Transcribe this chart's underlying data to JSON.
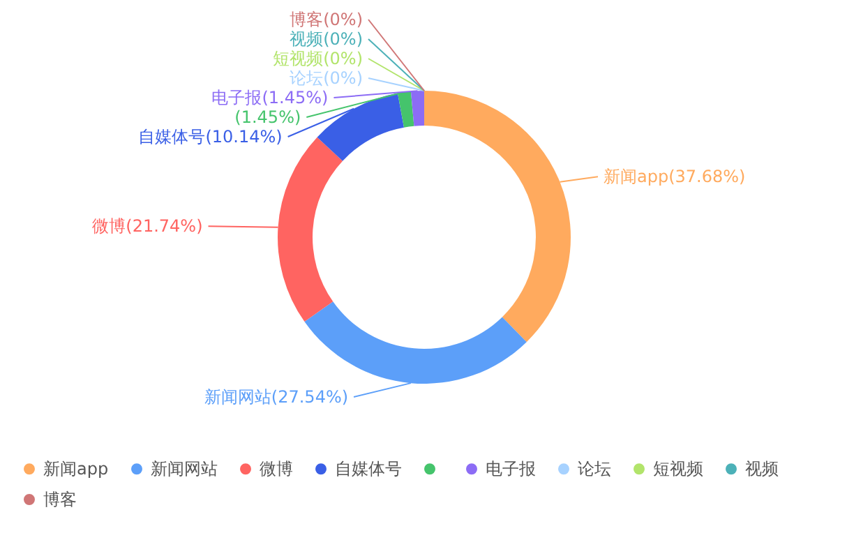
{
  "chart_data": {
    "type": "donut",
    "categories": [
      "新闻app",
      "新闻网站",
      "微博",
      "自媒体号",
      null,
      "电子报",
      "论坛",
      "短视频",
      "视频",
      "博客"
    ],
    "values": [
      37.68,
      27.54,
      21.74,
      10.14,
      1.45,
      1.45,
      0,
      0,
      0,
      0
    ],
    "value_labels": [
      "(37.68%)",
      "(27.54%)",
      "(21.74%)",
      "(10.14%)",
      "(1.45%)",
      "(1.45%)",
      "(0%)",
      "(0%)",
      "(0%)",
      "(0%)"
    ],
    "colors": [
      "#ffaa5e",
      "#5c9ff9",
      "#ff6461",
      "#3a5fe6",
      "#45c46c",
      "#8c6cf5",
      "#a7d2ff",
      "#b2e46b",
      "#4cb1b8",
      "#d07676"
    ],
    "data_labels": true,
    "legend": "bottom"
  }
}
